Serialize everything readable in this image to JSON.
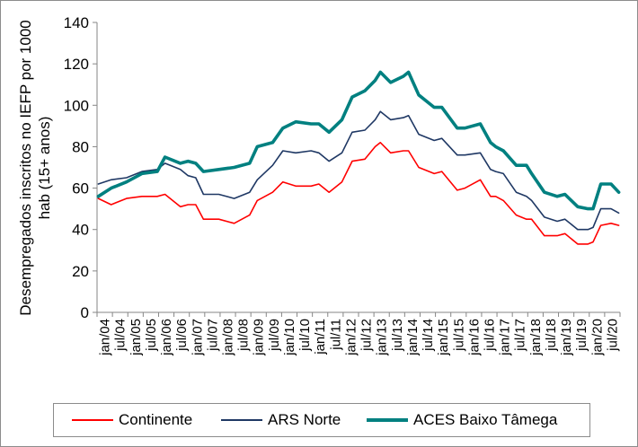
{
  "chart_data": {
    "type": "line",
    "ylabel": "Desempregados inscritos no IEFP por 1000 hab (15+ anos)",
    "ylabel_lines": [
      "Desempregados inscritos no IEFP por 1000",
      "hab (15+ anos)"
    ],
    "ylim": [
      0,
      140
    ],
    "yticks": [
      0,
      20,
      40,
      60,
      80,
      100,
      120,
      140
    ],
    "x_tick_labels": [
      "jan/04",
      "jul/04",
      "jan/05",
      "jul/05",
      "jan/06",
      "jul/06",
      "jan/07",
      "jul/07",
      "jan/08",
      "jul/08",
      "jan/09",
      "jul/09",
      "jan/10",
      "jul/10",
      "jan/11",
      "jul/11",
      "jan/12",
      "jul/12",
      "jan/13",
      "jul/13",
      "jan/14",
      "jul/14",
      "jan/15",
      "jul/15",
      "jan/16",
      "jul/16",
      "jan/17",
      "jul/17",
      "jan/18",
      "jul/18",
      "jan/19",
      "jul/19",
      "jan/20",
      "jul/20"
    ],
    "x_start": "2004-01",
    "x_end": "2020-12",
    "grid": "none",
    "legend_position": "bottom",
    "series": [
      {
        "name": "Continente",
        "color": "#ff0000",
        "stroke_width": 1.6,
        "points": [
          [
            "2004-01",
            55
          ],
          [
            "2004-06",
            52
          ],
          [
            "2004-12",
            55
          ],
          [
            "2005-06",
            56
          ],
          [
            "2005-12",
            56
          ],
          [
            "2006-03",
            57
          ],
          [
            "2006-09",
            51
          ],
          [
            "2006-12",
            52
          ],
          [
            "2007-03",
            52
          ],
          [
            "2007-06",
            45
          ],
          [
            "2007-12",
            45
          ],
          [
            "2008-06",
            43
          ],
          [
            "2008-12",
            47
          ],
          [
            "2009-03",
            54
          ],
          [
            "2009-09",
            58
          ],
          [
            "2010-01",
            63
          ],
          [
            "2010-06",
            61
          ],
          [
            "2010-12",
            61
          ],
          [
            "2011-03",
            62
          ],
          [
            "2011-07",
            58
          ],
          [
            "2011-12",
            63
          ],
          [
            "2012-04",
            73
          ],
          [
            "2012-09",
            74
          ],
          [
            "2013-01",
            80
          ],
          [
            "2013-03",
            82
          ],
          [
            "2013-07",
            77
          ],
          [
            "2013-12",
            78
          ],
          [
            "2014-02",
            78
          ],
          [
            "2014-06",
            70
          ],
          [
            "2014-12",
            67
          ],
          [
            "2015-03",
            68
          ],
          [
            "2015-09",
            59
          ],
          [
            "2015-12",
            60
          ],
          [
            "2016-06",
            64
          ],
          [
            "2016-10",
            56
          ],
          [
            "2016-12",
            56
          ],
          [
            "2017-03",
            54
          ],
          [
            "2017-08",
            47
          ],
          [
            "2017-12",
            45
          ],
          [
            "2018-02",
            45
          ],
          [
            "2018-07",
            37
          ],
          [
            "2018-12",
            37
          ],
          [
            "2019-03",
            38
          ],
          [
            "2019-08",
            33
          ],
          [
            "2019-12",
            33
          ],
          [
            "2020-02",
            34
          ],
          [
            "2020-05",
            42
          ],
          [
            "2020-09",
            43
          ],
          [
            "2020-12",
            42
          ]
        ]
      },
      {
        "name": "ARS Norte",
        "color": "#1f3864",
        "stroke_width": 1.6,
        "points": [
          [
            "2004-01",
            62
          ],
          [
            "2004-06",
            64
          ],
          [
            "2004-12",
            65
          ],
          [
            "2005-06",
            68
          ],
          [
            "2005-12",
            69
          ],
          [
            "2006-03",
            72
          ],
          [
            "2006-09",
            69
          ],
          [
            "2006-12",
            66
          ],
          [
            "2007-03",
            65
          ],
          [
            "2007-06",
            57
          ],
          [
            "2007-12",
            57
          ],
          [
            "2008-06",
            55
          ],
          [
            "2008-12",
            58
          ],
          [
            "2009-03",
            64
          ],
          [
            "2009-09",
            71
          ],
          [
            "2010-01",
            78
          ],
          [
            "2010-06",
            77
          ],
          [
            "2010-12",
            78
          ],
          [
            "2011-03",
            77
          ],
          [
            "2011-07",
            73
          ],
          [
            "2011-12",
            77
          ],
          [
            "2012-04",
            87
          ],
          [
            "2012-09",
            88
          ],
          [
            "2013-01",
            93
          ],
          [
            "2013-03",
            97
          ],
          [
            "2013-07",
            93
          ],
          [
            "2013-12",
            94
          ],
          [
            "2014-02",
            95
          ],
          [
            "2014-06",
            86
          ],
          [
            "2014-12",
            83
          ],
          [
            "2015-03",
            84
          ],
          [
            "2015-09",
            76
          ],
          [
            "2015-12",
            76
          ],
          [
            "2016-06",
            77
          ],
          [
            "2016-10",
            69
          ],
          [
            "2016-12",
            68
          ],
          [
            "2017-03",
            67
          ],
          [
            "2017-08",
            58
          ],
          [
            "2017-12",
            56
          ],
          [
            "2018-02",
            54
          ],
          [
            "2018-07",
            46
          ],
          [
            "2018-12",
            44
          ],
          [
            "2019-03",
            45
          ],
          [
            "2019-08",
            40
          ],
          [
            "2019-12",
            40
          ],
          [
            "2020-02",
            41
          ],
          [
            "2020-05",
            50
          ],
          [
            "2020-09",
            50
          ],
          [
            "2020-12",
            48
          ]
        ]
      },
      {
        "name": "ACES Baixo Tâmega",
        "color": "#008080",
        "stroke_width": 3.6,
        "points": [
          [
            "2004-01",
            56
          ],
          [
            "2004-06",
            60
          ],
          [
            "2004-12",
            63
          ],
          [
            "2005-06",
            67
          ],
          [
            "2005-12",
            68
          ],
          [
            "2006-03",
            75
          ],
          [
            "2006-09",
            72
          ],
          [
            "2006-12",
            73
          ],
          [
            "2007-03",
            72
          ],
          [
            "2007-06",
            68
          ],
          [
            "2007-12",
            69
          ],
          [
            "2008-06",
            70
          ],
          [
            "2008-12",
            72
          ],
          [
            "2009-03",
            80
          ],
          [
            "2009-09",
            82
          ],
          [
            "2010-01",
            89
          ],
          [
            "2010-06",
            92
          ],
          [
            "2010-12",
            91
          ],
          [
            "2011-03",
            91
          ],
          [
            "2011-07",
            87
          ],
          [
            "2011-12",
            93
          ],
          [
            "2012-04",
            104
          ],
          [
            "2012-09",
            107
          ],
          [
            "2013-01",
            112
          ],
          [
            "2013-03",
            116
          ],
          [
            "2013-07",
            111
          ],
          [
            "2013-12",
            114
          ],
          [
            "2014-02",
            116
          ],
          [
            "2014-06",
            105
          ],
          [
            "2014-12",
            99
          ],
          [
            "2015-03",
            99
          ],
          [
            "2015-09",
            89
          ],
          [
            "2015-12",
            89
          ],
          [
            "2016-06",
            91
          ],
          [
            "2016-10",
            82
          ],
          [
            "2016-12",
            80
          ],
          [
            "2017-03",
            78
          ],
          [
            "2017-08",
            71
          ],
          [
            "2017-12",
            71
          ],
          [
            "2018-02",
            67
          ],
          [
            "2018-07",
            58
          ],
          [
            "2018-12",
            56
          ],
          [
            "2019-03",
            57
          ],
          [
            "2019-08",
            51
          ],
          [
            "2019-12",
            50
          ],
          [
            "2020-02",
            50
          ],
          [
            "2020-05",
            62
          ],
          [
            "2020-09",
            62
          ],
          [
            "2020-12",
            58
          ]
        ]
      }
    ]
  }
}
